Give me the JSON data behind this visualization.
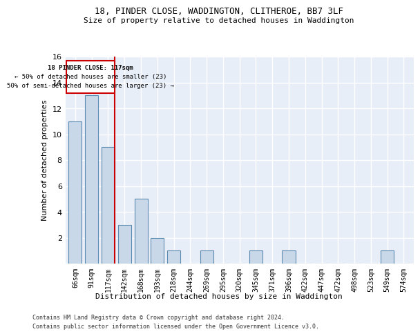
{
  "title1": "18, PINDER CLOSE, WADDINGTON, CLITHEROE, BB7 3LF",
  "title2": "Size of property relative to detached houses in Waddington",
  "xlabel": "Distribution of detached houses by size in Waddington",
  "ylabel": "Number of detached properties",
  "categories": [
    "66sqm",
    "91sqm",
    "117sqm",
    "142sqm",
    "168sqm",
    "193sqm",
    "218sqm",
    "244sqm",
    "269sqm",
    "295sqm",
    "320sqm",
    "345sqm",
    "371sqm",
    "396sqm",
    "422sqm",
    "447sqm",
    "472sqm",
    "498sqm",
    "523sqm",
    "549sqm",
    "574sqm"
  ],
  "values": [
    11,
    13,
    9,
    3,
    5,
    2,
    1,
    0,
    1,
    0,
    0,
    1,
    0,
    1,
    0,
    0,
    0,
    0,
    0,
    1,
    0
  ],
  "bar_color": "#c8d8e8",
  "bar_edgecolor": "#5a8ab0",
  "highlight_index": 2,
  "redline_label": "18 PINDER CLOSE: 117sqm",
  "annotation_line1": "← 50% of detached houses are smaller (23)",
  "annotation_line2": "50% of semi-detached houses are larger (23) →",
  "annotation_box_color": "#cc0000",
  "ylim": [
    0,
    16
  ],
  "yticks": [
    0,
    2,
    4,
    6,
    8,
    10,
    12,
    14,
    16
  ],
  "footer1": "Contains HM Land Registry data © Crown copyright and database right 2024.",
  "footer2": "Contains public sector information licensed under the Open Government Licence v3.0.",
  "background_color": "#e8eef8"
}
